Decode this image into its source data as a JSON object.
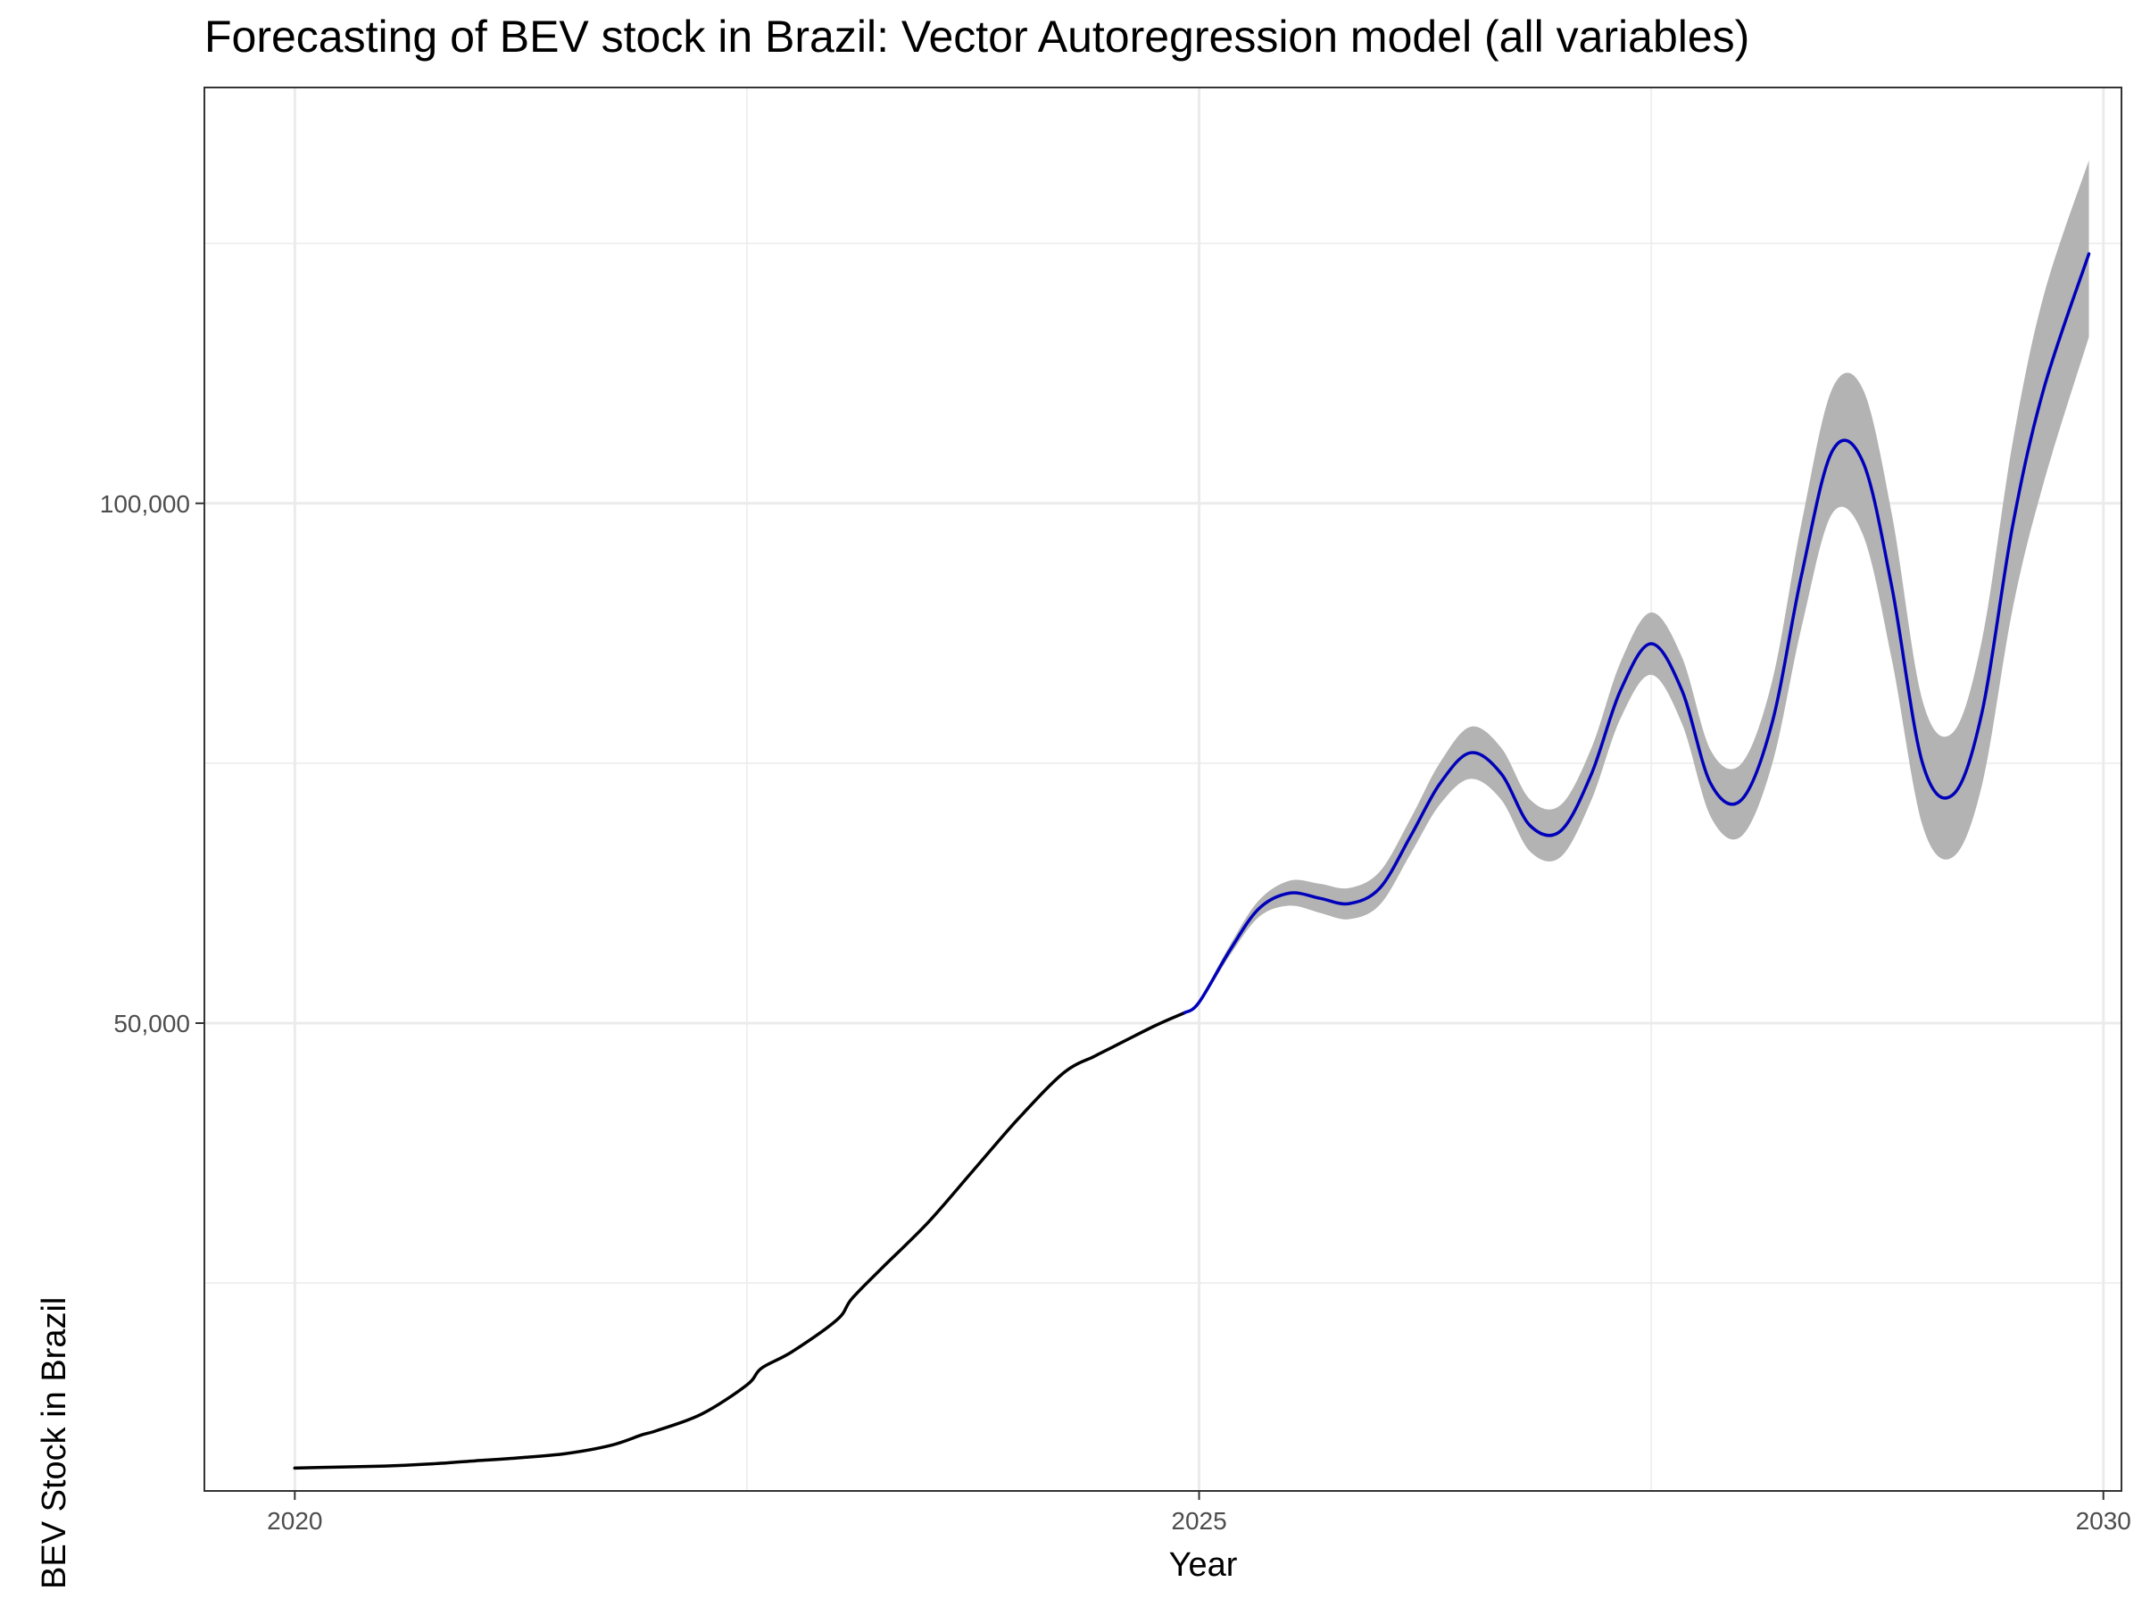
{
  "chart_data": {
    "type": "line",
    "title": "Forecasting of BEV stock in Brazil: Vector Autoregression model (all variables)",
    "xlabel": "Year",
    "ylabel": "BEV Stock in Brazil",
    "xlim": [
      2019.5,
      2030.1
    ],
    "ylim": [
      5000,
      140000
    ],
    "x_ticks": [
      2020,
      2025,
      2030
    ],
    "x_tick_labels": [
      "2020",
      "2025",
      "2030"
    ],
    "y_ticks": [
      50000,
      100000
    ],
    "y_tick_labels": [
      "50,000",
      "100,000"
    ],
    "grid": true,
    "legend": "none",
    "colors": {
      "observed": "#000000",
      "forecast": "#0000bb",
      "interval": "#b3b3b3"
    },
    "series": [
      {
        "role": "observed",
        "x": [
          2020.0,
          2020.25,
          2020.5,
          2020.75,
          2021.0,
          2021.25,
          2021.5,
          2021.75,
          2021.92,
          2022.0,
          2022.25,
          2022.5,
          2022.58,
          2022.75,
          2023.0,
          2023.08,
          2023.25,
          2023.5,
          2023.75,
          2024.0,
          2024.25,
          2024.42,
          2024.5,
          2024.75,
          2024.92
        ],
        "values": [
          7200,
          7300,
          7400,
          7600,
          7900,
          8200,
          8600,
          9400,
          10400,
          10800,
          12400,
          15200,
          16800,
          18400,
          21500,
          23500,
          26500,
          30800,
          35800,
          40800,
          45200,
          46800,
          47500,
          49700,
          51000
        ]
      },
      {
        "role": "forecast",
        "x": [
          2024.92,
          2025.0,
          2025.17,
          2025.33,
          2025.5,
          2025.67,
          2025.83,
          2026.0,
          2026.17,
          2026.33,
          2026.5,
          2026.67,
          2026.83,
          2027.0,
          2027.17,
          2027.33,
          2027.5,
          2027.67,
          2027.83,
          2028.0,
          2028.17,
          2028.33,
          2028.5,
          2028.67,
          2028.83,
          2029.0,
          2029.17,
          2029.33,
          2029.5,
          2029.67,
          2029.92
        ],
        "values": [
          51000,
          52000,
          57000,
          61000,
          62500,
          62000,
          61500,
          63000,
          68000,
          73000,
          76000,
          74000,
          69000,
          68500,
          74000,
          82000,
          86500,
          82000,
          73000,
          71500,
          79000,
          93000,
          105000,
          104000,
          92000,
          75000,
          72000,
          80000,
          98000,
          111000,
          124000
        ]
      }
    ],
    "interval": {
      "x": [
        2024.92,
        2025.0,
        2025.17,
        2025.33,
        2025.5,
        2025.67,
        2025.83,
        2026.0,
        2026.17,
        2026.33,
        2026.5,
        2026.67,
        2026.83,
        2027.0,
        2027.17,
        2027.33,
        2027.5,
        2027.67,
        2027.83,
        2028.0,
        2028.17,
        2028.33,
        2028.5,
        2028.67,
        2028.83,
        2029.0,
        2029.17,
        2029.33,
        2029.5,
        2029.67,
        2029.92
      ],
      "lower": [
        51000,
        51800,
        56500,
        60200,
        61300,
        60600,
        60000,
        61400,
        66300,
        71000,
        73500,
        71500,
        66500,
        66000,
        71500,
        79300,
        83500,
        78800,
        69800,
        68000,
        75000,
        88000,
        99000,
        97000,
        85000,
        69000,
        66000,
        73000,
        90000,
        102000,
        116000
      ],
      "upper": [
        51000,
        52200,
        57500,
        61800,
        63700,
        63400,
        63000,
        64600,
        69700,
        75000,
        78500,
        76500,
        71500,
        71000,
        76500,
        84700,
        89500,
        85200,
        76200,
        75000,
        83000,
        98000,
        111000,
        111000,
        99000,
        81000,
        78000,
        87000,
        106000,
        120000,
        133000
      ]
    }
  }
}
